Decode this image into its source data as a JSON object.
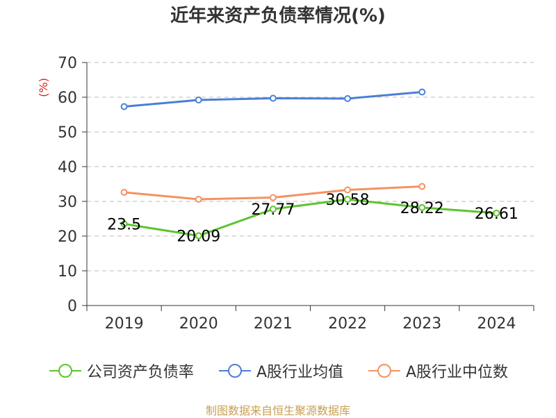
{
  "chart_data": {
    "type": "line",
    "title": "近年来资产负债率情况(%)",
    "unit_label": "(%)",
    "categories": [
      "2019",
      "2020",
      "2021",
      "2022",
      "2023",
      "2024"
    ],
    "y_ticks": [
      "0",
      "10",
      "20",
      "30",
      "40",
      "50",
      "60",
      "70"
    ],
    "ylim": [
      0,
      70
    ],
    "grid": true,
    "legend_position": "bottom",
    "series": [
      {
        "name": "公司资产负债率",
        "color": "#5cc42c",
        "show_labels": true,
        "values": [
          23.5,
          20.09,
          27.77,
          30.58,
          28.22,
          26.61
        ],
        "labels": [
          "23.5",
          "20.09",
          "27.77",
          "30.58",
          "28.22",
          "26.61"
        ]
      },
      {
        "name": "A股行业均值",
        "color": "#4a7fd6",
        "show_labels": false,
        "values": [
          57.3,
          59.2,
          59.7,
          59.6,
          61.5,
          null
        ]
      },
      {
        "name": "A股行业中位数",
        "color": "#f59160",
        "show_labels": false,
        "values": [
          32.6,
          30.6,
          31.1,
          33.3,
          34.3,
          null
        ]
      }
    ]
  },
  "source": "制图数据来自恒生聚源数据库"
}
